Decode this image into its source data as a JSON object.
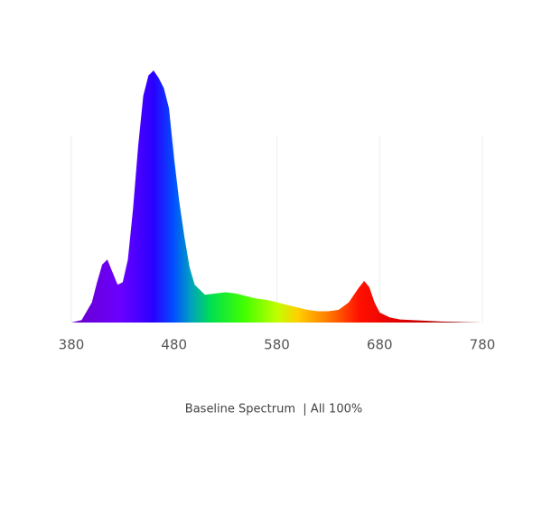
{
  "chart_data": {
    "type": "area",
    "title": "Baseline Spectrum  | All 100%",
    "x": [
      380,
      390,
      400,
      405,
      410,
      415,
      420,
      425,
      430,
      435,
      440,
      445,
      450,
      455,
      460,
      465,
      470,
      475,
      480,
      485,
      490,
      495,
      500,
      510,
      520,
      530,
      540,
      550,
      560,
      570,
      580,
      590,
      600,
      610,
      620,
      630,
      640,
      650,
      660,
      665,
      670,
      675,
      680,
      690,
      700,
      720,
      740,
      760,
      780
    ],
    "values": [
      0,
      1,
      8,
      16,
      23,
      25,
      20,
      15,
      16,
      25,
      45,
      70,
      90,
      98,
      100,
      97,
      93,
      85,
      65,
      48,
      34,
      22,
      15,
      11,
      11.5,
      12,
      11.5,
      10.5,
      9.5,
      9,
      8,
      7,
      6,
      5,
      4.5,
      4.5,
      5,
      8,
      14,
      16.5,
      14,
      8,
      4,
      2,
      1.2,
      0.8,
      0.4,
      0.2,
      0
    ],
    "xlim": [
      380,
      780
    ],
    "ylim": [
      0,
      100
    ],
    "xticks": [
      380,
      480,
      580,
      680,
      780
    ],
    "grid": true
  }
}
